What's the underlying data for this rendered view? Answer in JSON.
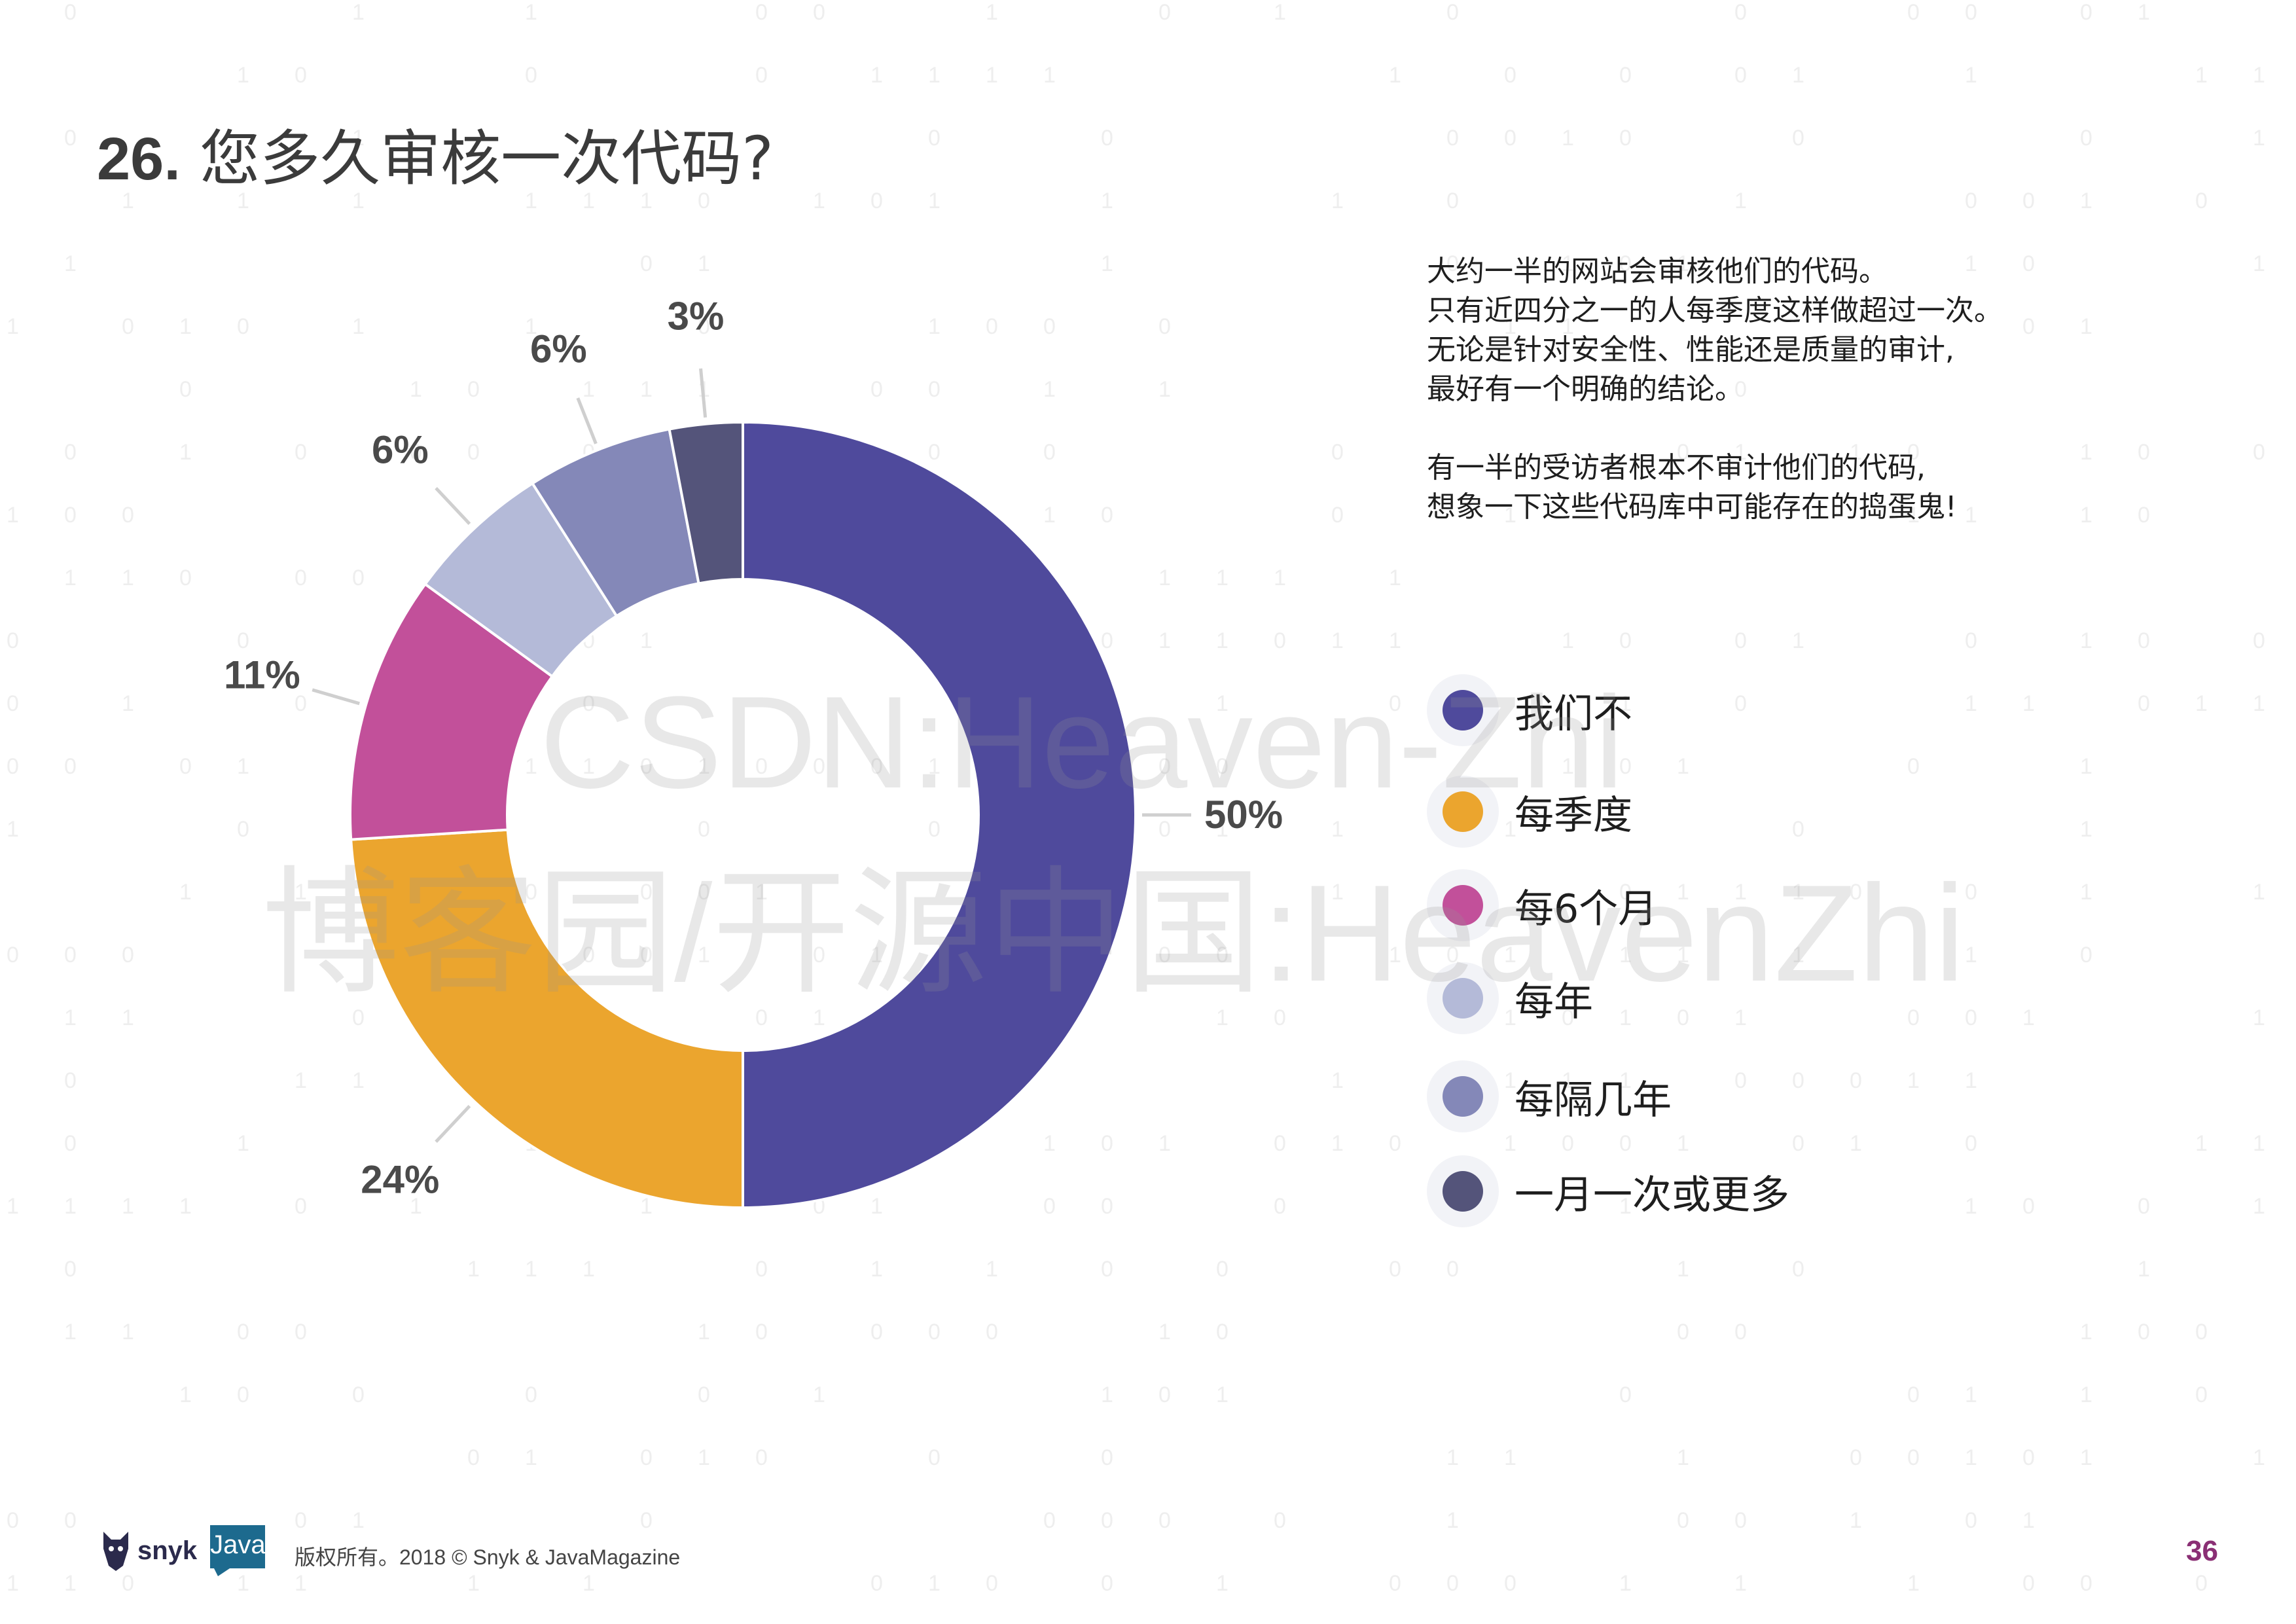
{
  "page": {
    "title_number": "26.",
    "title_text": "您多久审核一次代码?",
    "page_number": "36",
    "copyright": "版权所有。2018 © Snyk & JavaMagazine",
    "brand_snyk": "snyk",
    "brand_java": "Java"
  },
  "description": {
    "paragraph1": "大约一半的网站会审核他们的代码。\n只有近四分之一的人每季度这样做超过一次。\n无论是针对安全性、性能还是质量的审计,\n最好有一个明确的结论。",
    "paragraph2": "有一半的受访者根本不审计他们的代码,\n想象一下这些代码库中可能存在的捣蛋鬼!"
  },
  "watermark": {
    "line1": "CSDN:Heaven-Zhi",
    "line2": "博客园/开源中国:HeavenZhi"
  },
  "chart_data": {
    "type": "pie",
    "variant": "donut",
    "title": "",
    "categories": [
      "我们不",
      "每季度",
      "每6个月",
      "每年",
      "每隔几年",
      "一月一次或更多"
    ],
    "values": [
      50,
      24,
      11,
      6,
      6,
      3
    ],
    "labels": [
      "50%",
      "24%",
      "11%",
      "6%",
      "6%",
      "3%"
    ],
    "colors": [
      "#4f4a9c",
      "#eba52e",
      "#c2509a",
      "#b4bad8",
      "#8488b8",
      "#54547a"
    ],
    "legend_position": "right"
  }
}
